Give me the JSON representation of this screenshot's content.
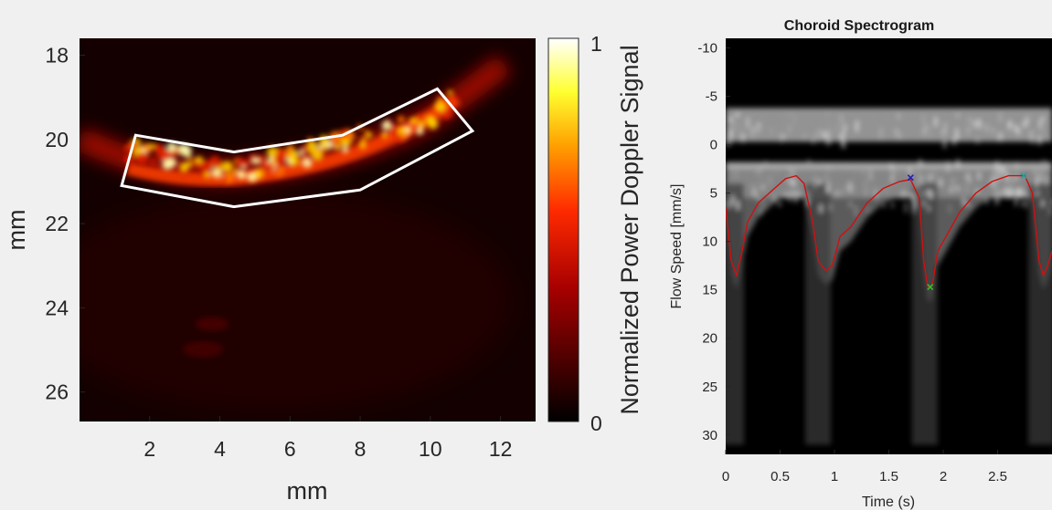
{
  "chart_data": [
    {
      "type": "heatmap",
      "title": "",
      "xlabel": "mm",
      "ylabel": "mm",
      "x_ticks": [
        2,
        4,
        6,
        8,
        10,
        12
      ],
      "y_ticks": [
        18,
        20,
        22,
        24,
        26
      ],
      "xlim": [
        0,
        13
      ],
      "ylim": [
        17.6,
        26.7
      ],
      "roi_polygon_mm": [
        [
          1.6,
          19.9
        ],
        [
          4.4,
          20.3
        ],
        [
          7.5,
          19.9
        ],
        [
          10.2,
          18.8
        ],
        [
          11.2,
          19.8
        ],
        [
          8.0,
          21.2
        ],
        [
          4.4,
          21.6
        ],
        [
          1.2,
          21.1
        ]
      ],
      "colorbar": {
        "label": "Normalized Power Doppler Signal",
        "min_label": "0",
        "max_label": "1",
        "range": [
          0,
          1
        ],
        "colormap": "hot"
      },
      "colors": {
        "roi_outline": "#ffffff",
        "background": "#140000"
      }
    },
    {
      "type": "heatmap",
      "title": "Choroid Spectrogram",
      "xlabel": "Time (s)",
      "ylabel": "Flow Speed [mm/s]",
      "x_ticks": [
        0,
        0.5,
        1,
        1.5,
        2,
        2.5
      ],
      "y_ticks": [
        -10,
        -5,
        0,
        5,
        10,
        15,
        20,
        25,
        30
      ],
      "xlim": [
        0,
        3.0
      ],
      "ylim": [
        -11,
        32
      ],
      "colormap": "gray",
      "envelope_trace": {
        "color": "#d01010",
        "points": [
          [
            0.0,
            6.5
          ],
          [
            0.05,
            12
          ],
          [
            0.1,
            13.5
          ],
          [
            0.15,
            11
          ],
          [
            0.2,
            8
          ],
          [
            0.3,
            6
          ],
          [
            0.45,
            4.5
          ],
          [
            0.55,
            3.5
          ],
          [
            0.65,
            3.2
          ],
          [
            0.72,
            4
          ],
          [
            0.8,
            8
          ],
          [
            0.85,
            12
          ],
          [
            0.92,
            13
          ],
          [
            0.98,
            12.5
          ],
          [
            1.05,
            9.5
          ],
          [
            1.15,
            8.5
          ],
          [
            1.3,
            6
          ],
          [
            1.45,
            4.5
          ],
          [
            1.6,
            3.8
          ],
          [
            1.7,
            3.6
          ],
          [
            1.78,
            5.5
          ],
          [
            1.82,
            12
          ],
          [
            1.86,
            14.8
          ],
          [
            1.9,
            14.5
          ],
          [
            1.95,
            11
          ],
          [
            2.05,
            9
          ],
          [
            2.15,
            7
          ],
          [
            2.3,
            5
          ],
          [
            2.45,
            3.8
          ],
          [
            2.6,
            3.2
          ],
          [
            2.75,
            3.2
          ],
          [
            2.82,
            5
          ],
          [
            2.88,
            12
          ],
          [
            2.92,
            13.5
          ],
          [
            2.96,
            12.5
          ],
          [
            3.0,
            11
          ]
        ]
      },
      "markers": [
        {
          "x": 1.7,
          "y": 3.4,
          "color": "#2020c0"
        },
        {
          "x": 1.88,
          "y": 14.7,
          "color": "#30c030"
        },
        {
          "x": 2.74,
          "y": 3.2,
          "color": "#20a0a0"
        }
      ]
    }
  ]
}
